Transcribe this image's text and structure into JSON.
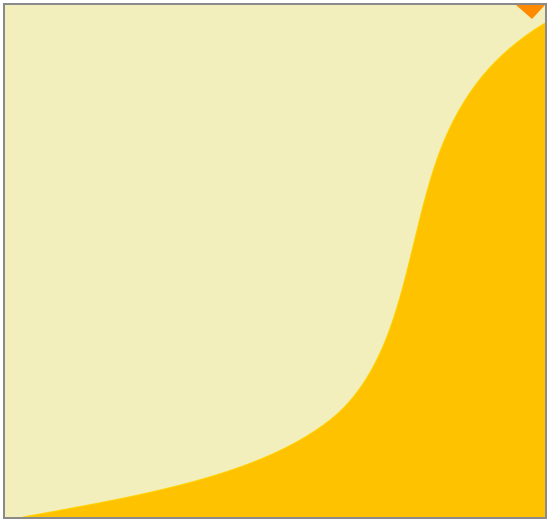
{
  "colors": {
    "background": "#f2efbd",
    "fill": "#ffc200",
    "corner_marker": "#ff8a00",
    "border": "#8a8a8a"
  },
  "icons": {
    "corner_marker": "triangle-down-icon"
  }
}
